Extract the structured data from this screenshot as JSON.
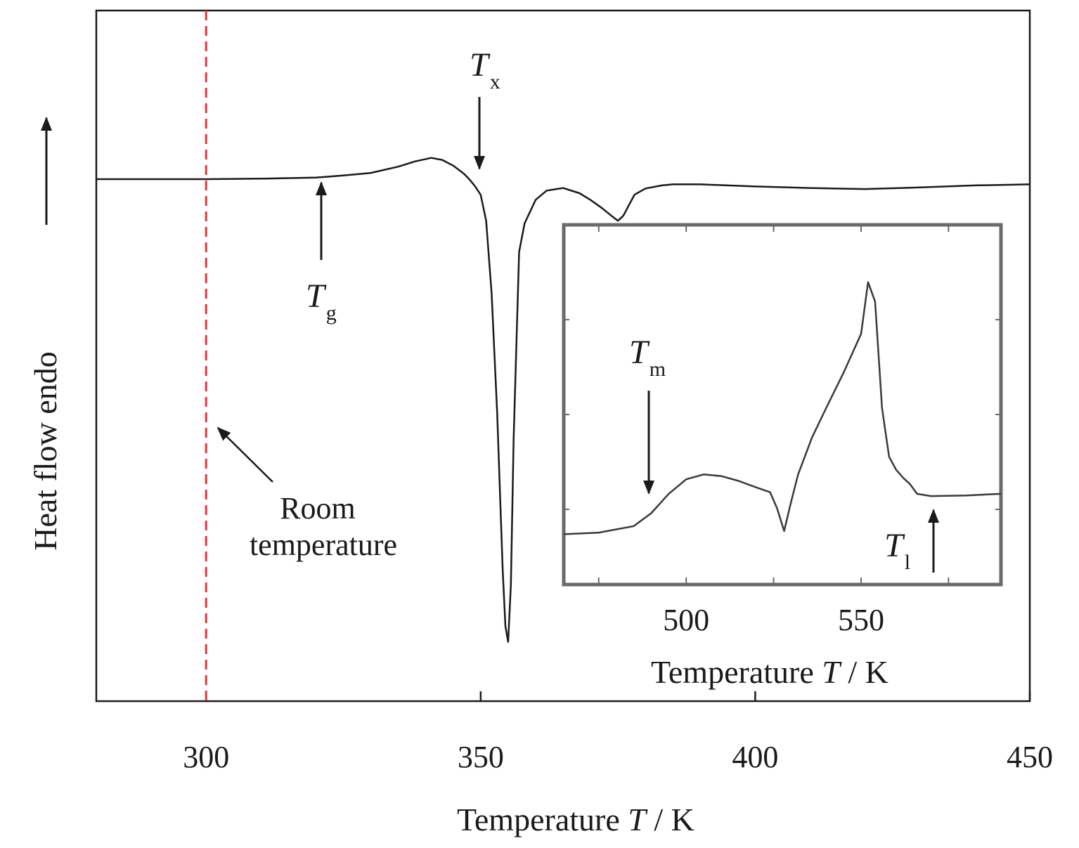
{
  "chart_data": [
    {
      "type": "line",
      "xlabel_prefix": "Temperature ",
      "xlabel_symbol": "T",
      "xlabel_unit": " / K",
      "ylabel": "Heat flow endo",
      "xlim": [
        280,
        450
      ],
      "x_ticks": [
        300,
        350,
        400,
        450
      ],
      "y_ticks": [],
      "grid": false,
      "reference_line": {
        "x": 300,
        "color": "#e8333a",
        "style": "dashed",
        "label_line1": "Room",
        "label_line2": "temperature"
      },
      "annotations": [
        {
          "symbol": "T",
          "subscript": "g",
          "x": 320.5
        },
        {
          "symbol": "T",
          "subscript": "x",
          "x": 350
        }
      ],
      "series": [
        {
          "x": [
            280,
            290,
            300,
            310,
            320,
            325,
            330,
            335,
            338,
            341,
            343,
            345,
            347,
            348,
            349,
            350,
            351,
            352,
            353,
            354,
            354.5,
            355,
            355.5,
            356,
            357,
            358,
            360,
            362,
            365,
            368,
            370,
            372,
            374,
            375,
            376,
            377,
            378,
            380,
            383,
            385,
            390,
            400,
            410,
            420,
            430,
            440,
            450
          ],
          "y": [
            0.0,
            0.0,
            0.0,
            -0.01,
            -0.03,
            -0.07,
            -0.12,
            -0.24,
            -0.34,
            -0.41,
            -0.37,
            -0.26,
            -0.1,
            0.01,
            0.14,
            0.3,
            0.8,
            2.2,
            4.5,
            7.5,
            8.6,
            8.9,
            7.8,
            5.0,
            1.4,
            0.85,
            0.4,
            0.22,
            0.17,
            0.27,
            0.4,
            0.55,
            0.72,
            0.8,
            0.7,
            0.5,
            0.3,
            0.18,
            0.12,
            0.1,
            0.1,
            0.14,
            0.17,
            0.19,
            0.16,
            0.12,
            0.1
          ]
        }
      ]
    },
    {
      "type": "line",
      "xlabel_prefix": "Temperature ",
      "xlabel_symbol": "T",
      "xlabel_unit": " / K",
      "xlim": [
        465,
        590
      ],
      "x_ticks": [
        500,
        550
      ],
      "grid": false,
      "annotations": [
        {
          "symbol": "T",
          "subscript": "m",
          "x": 489
        },
        {
          "symbol": "T",
          "subscript": "l",
          "x": 566
        }
      ],
      "series": [
        {
          "x": [
            465,
            475,
            485,
            490,
            495,
            500,
            505,
            510,
            515,
            520,
            524,
            526,
            528,
            530,
            532,
            536,
            540,
            545,
            550,
            552,
            554,
            556,
            558,
            560,
            562,
            564,
            566,
            570,
            580,
            590
          ],
          "y": [
            0.1,
            0.15,
            0.35,
            0.75,
            1.35,
            1.8,
            1.95,
            1.9,
            1.75,
            1.55,
            1.4,
            0.9,
            0.2,
            1.1,
            1.95,
            3.1,
            4.0,
            5.1,
            6.3,
            7.9,
            7.3,
            4.0,
            2.5,
            2.1,
            1.85,
            1.65,
            1.35,
            1.28,
            1.3,
            1.35
          ]
        }
      ]
    }
  ]
}
